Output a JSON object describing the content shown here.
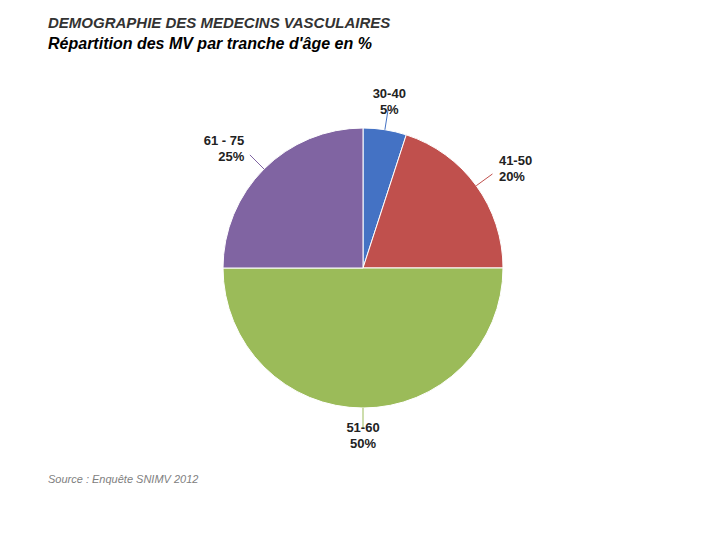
{
  "chart_data": {
    "type": "pie",
    "title": "DEMOGRAPHIE DES MEDECINS VASCULAIRES",
    "subtitle": "Répartition des MV par tranche d'âge en %",
    "categories": [
      "30-40",
      "41-50",
      "51-60",
      "61 - 75"
    ],
    "values": [
      5,
      20,
      50,
      25
    ],
    "value_labels": [
      "5%",
      "20%",
      "50%",
      "25%"
    ],
    "colors": [
      "#4472C4",
      "#C0504D",
      "#9BBB59",
      "#8064A2"
    ],
    "data_labels": true,
    "annotations": [
      "Source : Enquête SNIMV 2012"
    ]
  }
}
